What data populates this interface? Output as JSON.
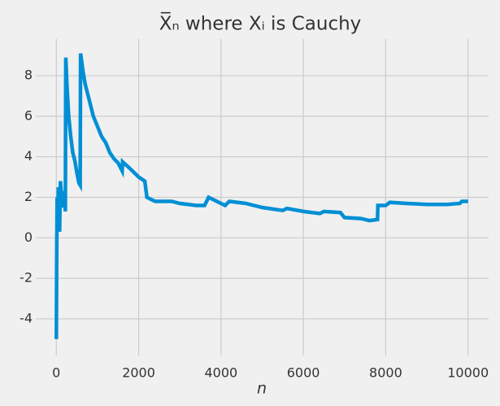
{
  "chart_data": {
    "type": "line",
    "title": "X̅ₙ where Xᵢ is Cauchy",
    "x_label": "n",
    "x": [
      0,
      10,
      20,
      30,
      50,
      80,
      100,
      150,
      200,
      220,
      230,
      260,
      300,
      350,
      400,
      450,
      500,
      550,
      580,
      590,
      650,
      700,
      800,
      900,
      1000,
      1100,
      1200,
      1300,
      1400,
      1500,
      1600,
      1610,
      1800,
      2000,
      2150,
      2200,
      2400,
      2600,
      2800,
      3000,
      3400,
      3600,
      3700,
      4000,
      4100,
      4200,
      4600,
      5000,
      5500,
      5600,
      6000,
      6400,
      6500,
      6900,
      7000,
      7400,
      7600,
      7800,
      7810,
      8000,
      8100,
      8500,
      9000,
      9500,
      9800,
      9850,
      10000
    ],
    "series": [
      {
        "color": "#008fd5",
        "values": [
          -5.0,
          -0.5,
          2.0,
          0.5,
          2.5,
          0.3,
          2.8,
          1.5,
          2.3,
          1.3,
          8.9,
          7.5,
          6.0,
          5.0,
          4.2,
          3.8,
          3.2,
          2.7,
          2.6,
          9.1,
          8.2,
          7.6,
          6.8,
          6.0,
          5.5,
          5.0,
          4.7,
          4.2,
          3.9,
          3.7,
          3.3,
          3.75,
          3.4,
          3.0,
          2.8,
          2.0,
          1.8,
          1.8,
          1.8,
          1.7,
          1.6,
          1.6,
          2.0,
          1.7,
          1.6,
          1.8,
          1.7,
          1.5,
          1.35,
          1.45,
          1.3,
          1.2,
          1.3,
          1.25,
          1.0,
          0.95,
          0.85,
          0.9,
          1.6,
          1.6,
          1.75,
          1.7,
          1.65,
          1.65,
          1.7,
          1.8,
          1.8
        ]
      }
    ],
    "xlim": [
      -499,
      10500
    ],
    "xticks": [
      0,
      2000,
      4000,
      6000,
      8000,
      10000
    ],
    "ylim": [
      -5.81,
      9.81
    ],
    "yticks": [
      -4,
      -2,
      0,
      2,
      4,
      6,
      8
    ],
    "grid": true
  }
}
